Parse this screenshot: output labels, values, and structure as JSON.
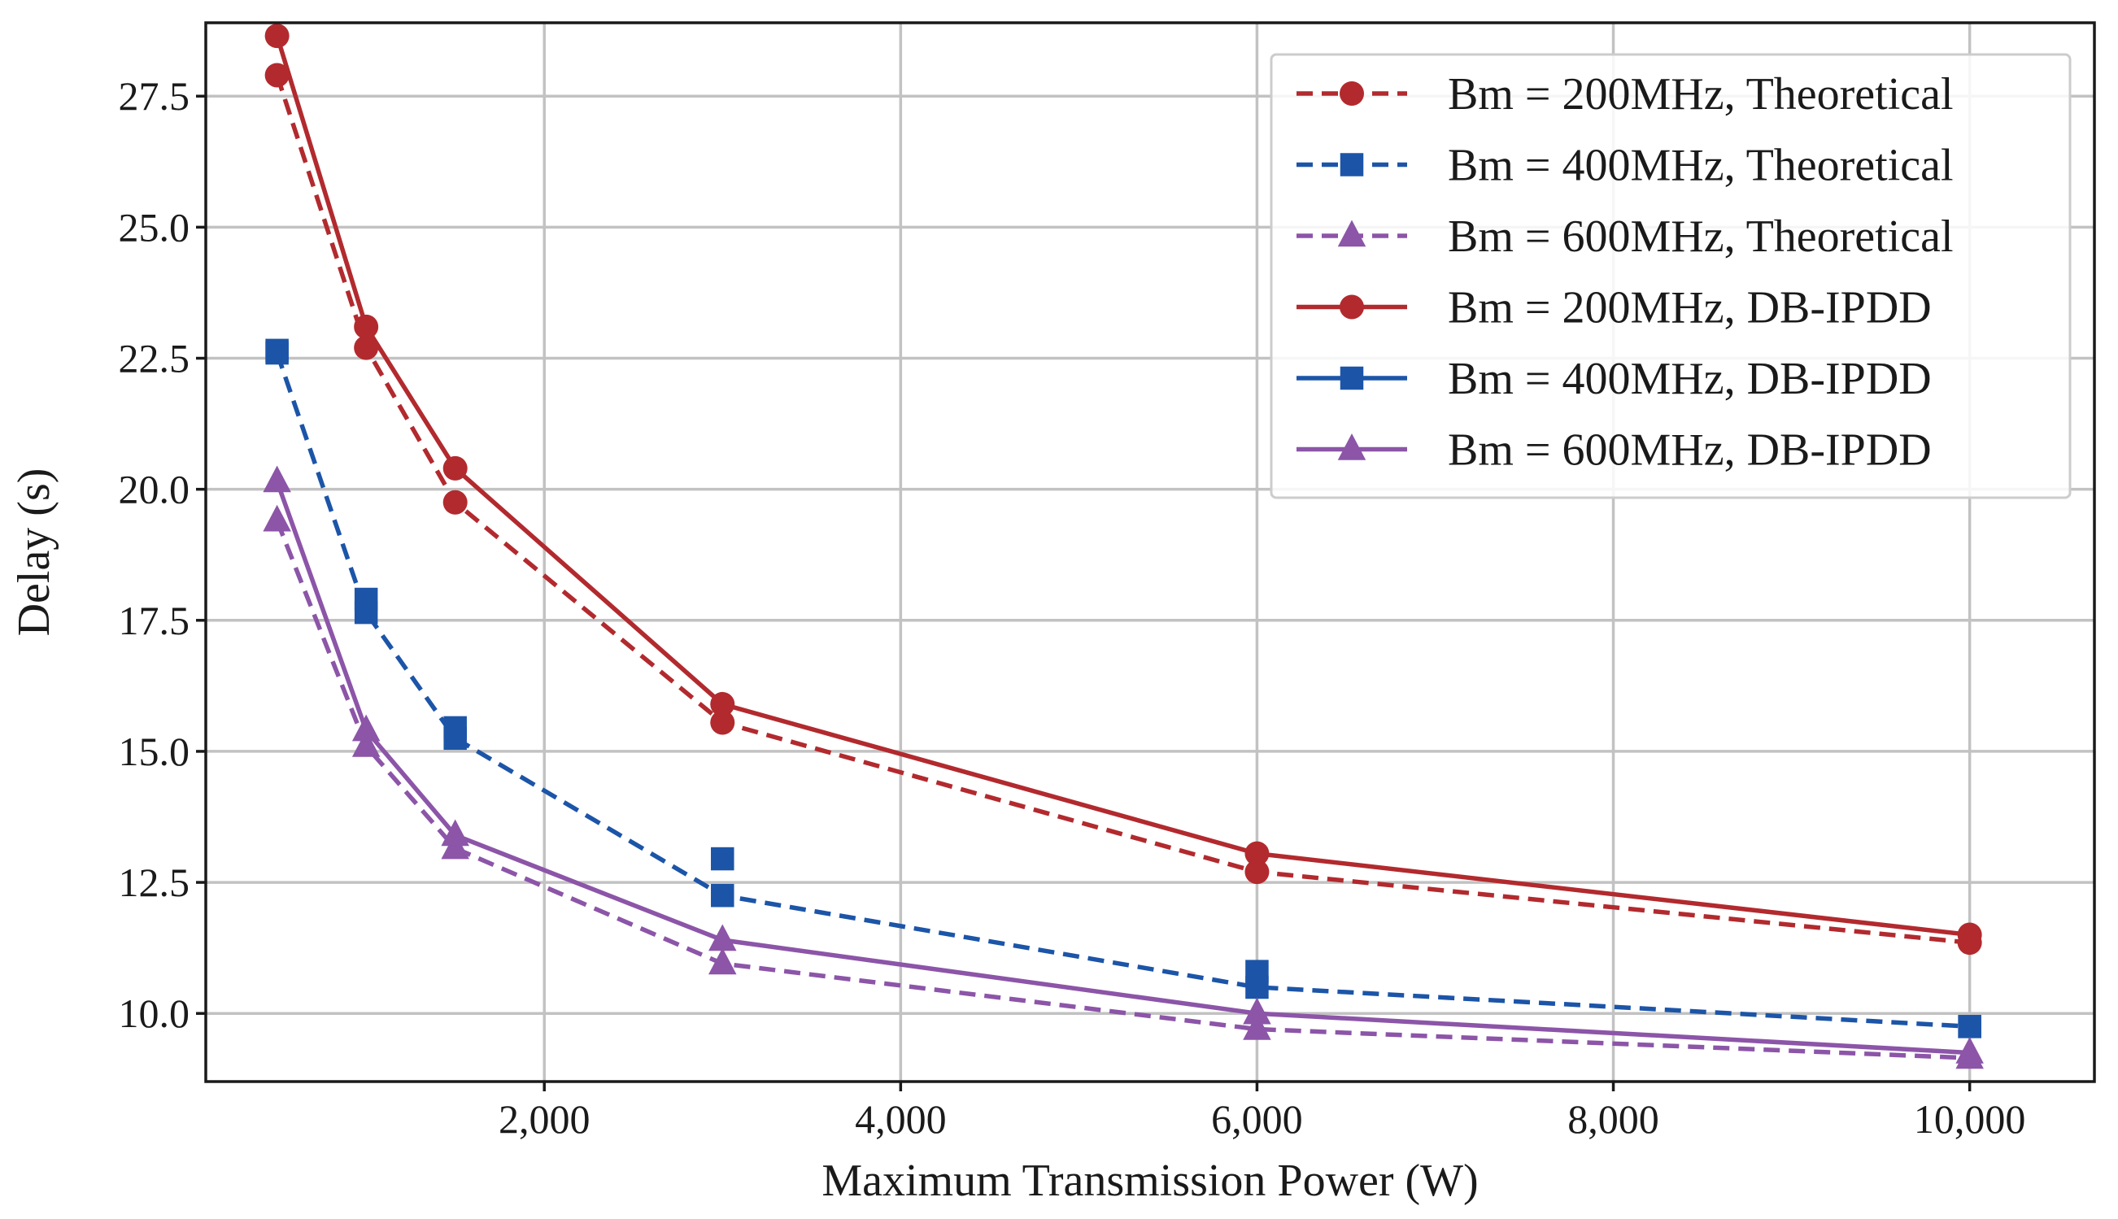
{
  "chart_data": {
    "type": "line",
    "title": "",
    "xlabel": "Maximum Transmission Power (W)",
    "ylabel": "Delay (s)",
    "xlim": [
      100,
      10700
    ],
    "ylim": [
      8.7,
      28.9
    ],
    "xticks": [
      2000,
      4000,
      6000,
      8000,
      10000
    ],
    "xtick_labels": [
      "2,000",
      "4,000",
      "6,000",
      "8,000",
      "10,000"
    ],
    "yticks": [
      10.0,
      12.5,
      15.0,
      17.5,
      20.0,
      22.5,
      25.0,
      27.5
    ],
    "ytick_labels": [
      "10.0",
      "12.5",
      "15.0",
      "17.5",
      "20.0",
      "22.5",
      "25.0",
      "27.5"
    ],
    "grid": true,
    "legend_position": "top-right",
    "x": [
      500,
      1000,
      1500,
      3000,
      6000,
      10000
    ],
    "series": [
      {
        "name": "Bm = 200MHz, Theoretical",
        "color": "#b22a2e",
        "dash": "dashed",
        "marker": "circle",
        "values": [
          27.9,
          22.7,
          19.75,
          15.55,
          12.7,
          11.35
        ]
      },
      {
        "name": "Bm = 400MHz, Theoretical",
        "color": "#1c55a8",
        "dash": "dashed",
        "marker": "square",
        "values": [
          22.6,
          17.65,
          15.25,
          12.25,
          10.5,
          9.75
        ]
      },
      {
        "name": "Bm = 600MHz, Theoretical",
        "color": "#8c55a8",
        "dash": "dashed",
        "marker": "triangle",
        "values": [
          19.4,
          15.1,
          13.15,
          10.95,
          9.7,
          9.15
        ]
      },
      {
        "name": "Bm = 200MHz, DB-IPDD",
        "color": "#b22a2e",
        "dash": "solid",
        "marker": "circle",
        "values": [
          28.65,
          23.1,
          20.4,
          15.9,
          13.05,
          11.5
        ]
      },
      {
        "name": "Bm = 400MHz, DB-IPDD",
        "color": "#1c55a8",
        "dash": "none",
        "marker": "square",
        "values": [
          22.65,
          17.9,
          15.45,
          12.95,
          10.8,
          9.75
        ]
      },
      {
        "name": "Bm = 600MHz, DB-IPDD",
        "color": "#8c55a8",
        "dash": "solid",
        "marker": "triangle",
        "values": [
          20.15,
          15.4,
          13.4,
          11.4,
          10.0,
          9.25
        ]
      }
    ]
  }
}
